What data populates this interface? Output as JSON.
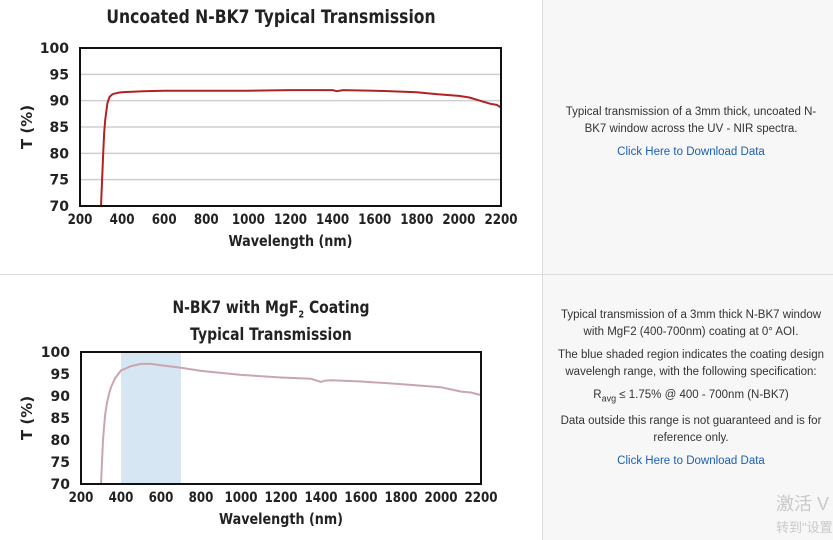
{
  "panels": [
    {
      "description": [
        "Typical transmission of a 3mm thick, uncoated N-BK7 window across the UV - NIR spectra."
      ],
      "download_label": "Click Here to Download Data"
    },
    {
      "description": [
        "Typical transmission of a 3mm thick N-BK7 window with MgF2 (400-700nm) coating at 0° AOI.",
        "The blue shaded region indicates the coating design wavelengh range, with the following specification:",
        "R_avg ≤ 1.75% @ 400 - 700nm (N-BK7)",
        "Data outside this range is not guaranteed and is for reference only."
      ],
      "spec": {
        "r_main": "R",
        "r_sub": "avg",
        "rest": " ≤ 1.75% @ 400 - 700nm (N-BK7)"
      },
      "download_label": "Click Here to Download Data"
    }
  ],
  "watermark": {
    "line1": "激活 V",
    "line2": "转到\"设置"
  },
  "chart_data": [
    {
      "type": "line",
      "title": "Uncoated N-BK7 Typical Transmission",
      "xlabel": "Wavelength (nm)",
      "ylabel": "T (%)",
      "xlim": [
        200,
        2200
      ],
      "ylim": [
        70,
        100
      ],
      "xticks": [
        200,
        400,
        600,
        800,
        1000,
        1200,
        1400,
        1600,
        1800,
        2000,
        2200
      ],
      "yticks": [
        70,
        75,
        80,
        85,
        90,
        95,
        100
      ],
      "grid": "horizontal",
      "line_color": "#b22222",
      "x": [
        300,
        305,
        310,
        315,
        320,
        330,
        340,
        350,
        360,
        380,
        400,
        500,
        600,
        800,
        1000,
        1200,
        1350,
        1400,
        1420,
        1450,
        1600,
        1800,
        1900,
        2000,
        2050,
        2100,
        2150,
        2180,
        2200
      ],
      "y": [
        70,
        75,
        80,
        84,
        86.5,
        89.5,
        90.7,
        91.1,
        91.3,
        91.5,
        91.6,
        91.8,
        91.9,
        91.9,
        91.9,
        92.0,
        92.0,
        92.0,
        91.8,
        92.0,
        91.9,
        91.6,
        91.2,
        90.9,
        90.6,
        90.0,
        89.4,
        89.2,
        88.7
      ]
    },
    {
      "type": "line",
      "title": "N-BK7 with MgF2 Coating Typical Transmission",
      "title_line1": {
        "main": "N-BK7 with MgF",
        "sub": "2",
        "tail": " Coating"
      },
      "title_line2": "Typical Transmission",
      "xlabel": "Wavelength (nm)",
      "ylabel": "T (%)",
      "xlim": [
        200,
        2200
      ],
      "ylim": [
        70,
        100
      ],
      "xticks": [
        200,
        400,
        600,
        800,
        1000,
        1200,
        1400,
        1600,
        1800,
        2000,
        2200
      ],
      "yticks": [
        70,
        75,
        80,
        85,
        90,
        95,
        100
      ],
      "grid": "none",
      "line_color": "#c9a6ae",
      "shaded_region": {
        "x_from": 400,
        "x_to": 700,
        "color": "#d7e6f3"
      },
      "x": [
        300,
        305,
        310,
        320,
        330,
        340,
        350,
        370,
        400,
        450,
        500,
        550,
        600,
        700,
        800,
        1000,
        1200,
        1350,
        1400,
        1420,
        1450,
        1600,
        1800,
        2000,
        2100,
        2150,
        2200
      ],
      "y": [
        70,
        75,
        80,
        85.5,
        88.5,
        90.5,
        92.0,
        94.0,
        95.8,
        96.8,
        97.3,
        97.3,
        97.0,
        96.4,
        95.7,
        94.8,
        94.2,
        93.9,
        93.2,
        93.5,
        93.6,
        93.3,
        92.7,
        92.0,
        91.0,
        90.8,
        90.2
      ]
    }
  ]
}
